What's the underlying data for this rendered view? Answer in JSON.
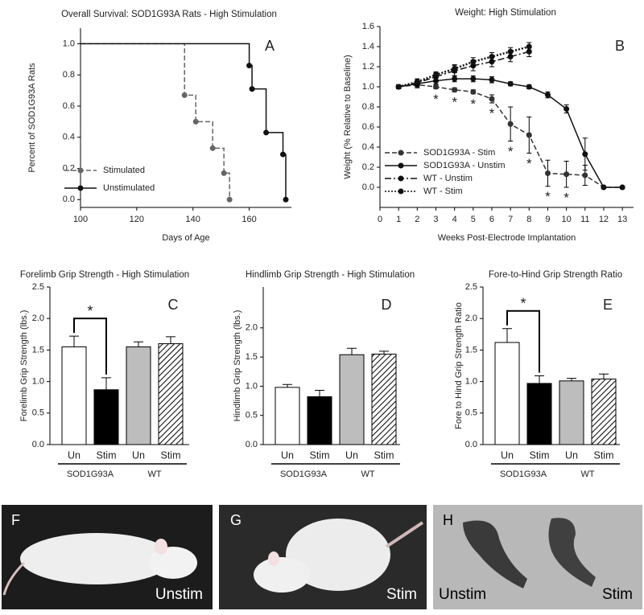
{
  "chart_data": [
    {
      "type": "step",
      "panel": "A",
      "title": "Overall Survival: SOD1G93A Rats - High Stimulation",
      "x_label": "Days of Age",
      "y_label": "Percent of SOD1G93A Rats",
      "xlim": [
        100,
        175
      ],
      "xticks": [
        100,
        120,
        140,
        160
      ],
      "ylim": [
        -0.05,
        1.1
      ],
      "yticks": [
        {
          "value": 0,
          "label": "0.0"
        },
        0.2,
        0.4,
        0.6,
        0.8,
        {
          "value": 1,
          "label": "1.0"
        }
      ],
      "legend": "lower left",
      "series": [
        {
          "name": "Stimulated",
          "color": "#666666",
          "dash": "dashed",
          "x": [
            100,
            137,
            141,
            147,
            151,
            153
          ],
          "values": [
            1.0,
            0.67,
            0.5,
            0.33,
            0.17,
            0.0
          ]
        },
        {
          "name": "Unstimulated",
          "color": "#111111",
          "dash": "solid",
          "x": [
            100,
            160,
            161,
            166,
            172,
            173
          ],
          "values": [
            1.0,
            0.86,
            0.71,
            0.43,
            0.29,
            0.0
          ]
        }
      ]
    },
    {
      "type": "line",
      "panel": "B",
      "title": "Weight: High Stimulation",
      "x_label": "Weeks Post-Electrode Implantation",
      "y_label": "Weight (% Relative to Baseline)",
      "xlim": [
        0,
        13.6
      ],
      "xticks": [
        0,
        1,
        2,
        3,
        4,
        5,
        6,
        7,
        8,
        9,
        10,
        11,
        12,
        13
      ],
      "ylim": [
        -0.2,
        1.6
      ],
      "yticks": [
        {
          "value": 0,
          "label": "0.0"
        },
        0.2,
        0.4,
        0.6,
        0.8,
        {
          "value": 1,
          "label": "1.0"
        },
        1.2,
        1.4,
        1.6
      ],
      "legend": "lower left",
      "significance_marker": "*",
      "significant_x": [
        3,
        4,
        5,
        6,
        7,
        8,
        9,
        10
      ],
      "series": [
        {
          "name": "SOD1G93A - Stim",
          "color": "#333333",
          "dash": "dashed",
          "x": [
            1,
            2,
            3,
            4,
            5,
            6,
            7,
            8,
            9,
            10,
            11,
            12,
            13
          ],
          "values": [
            1.0,
            1.02,
            1.0,
            0.97,
            0.95,
            0.88,
            0.63,
            0.52,
            0.14,
            0.13,
            0.12,
            0.0,
            0.0
          ],
          "errors": [
            0.02,
            0.03,
            0.02,
            0.02,
            0.02,
            0.04,
            0.17,
            0.18,
            0.13,
            0.13,
            0.1,
            0,
            0
          ]
        },
        {
          "name": "SOD1G93A - Unstim",
          "color": "#111111",
          "dash": "solid",
          "x": [
            1,
            2,
            3,
            4,
            5,
            6,
            7,
            8,
            9,
            10,
            11,
            12,
            13
          ],
          "values": [
            1.0,
            1.03,
            1.06,
            1.08,
            1.08,
            1.07,
            1.03,
            1.0,
            0.92,
            0.78,
            0.33,
            0.0,
            0.0
          ],
          "errors": [
            0.02,
            0.03,
            0.03,
            0.03,
            0.03,
            0.03,
            0.02,
            0.02,
            0.03,
            0.04,
            0.16,
            0,
            0
          ]
        },
        {
          "name": "WT - Unstim",
          "color": "#111111",
          "dash": "dashdot",
          "x": [
            1,
            2,
            3,
            4,
            5,
            6,
            7,
            8
          ],
          "values": [
            1.0,
            1.04,
            1.1,
            1.16,
            1.21,
            1.25,
            1.3,
            1.35
          ],
          "errors": [
            0.02,
            0.03,
            0.04,
            0.05,
            0.05,
            0.05,
            0.05,
            0.05
          ]
        },
        {
          "name": "WT - Stim",
          "color": "#111111",
          "dash": "dotted",
          "x": [
            1,
            2,
            3,
            4,
            5,
            6,
            7,
            8
          ],
          "values": [
            1.0,
            1.05,
            1.12,
            1.18,
            1.25,
            1.3,
            1.35,
            1.4
          ],
          "errors": [
            0.02,
            0.03,
            0.03,
            0.04,
            0.04,
            0.04,
            0.04,
            0.04
          ]
        }
      ]
    },
    {
      "type": "bar",
      "panel": "C",
      "title": "Forelimb Grip Strength - High Stimulation",
      "y_label": "Forelimb Grip Strength (lbs.)",
      "categories": [
        "Un",
        "Stim",
        "Un",
        "Stim"
      ],
      "groups": [
        "SOD1G93A",
        "WT"
      ],
      "values": [
        1.55,
        0.87,
        1.55,
        1.6
      ],
      "errors": [
        0.17,
        0.19,
        0.08,
        0.11
      ],
      "colors": [
        "#ffffff",
        "#000000",
        "#bdbdbd",
        "#ffffff"
      ],
      "hatch": [
        false,
        false,
        false,
        true
      ],
      "ylim": [
        0,
        2.5
      ],
      "yticks": [
        {
          "value": 0,
          "label": "0.0"
        },
        0.5,
        {
          "value": 1,
          "label": "1.0"
        },
        1.5,
        {
          "value": 2,
          "label": "2.0"
        },
        2.5
      ],
      "significance": {
        "between": [
          0,
          1
        ],
        "label": "*"
      }
    },
    {
      "type": "bar",
      "panel": "D",
      "title": "Hindlimb Grip Strength - High Stimulation",
      "y_label": "Hindlimb Grip Strength (lbs.)",
      "categories": [
        "Un",
        "Stim",
        "Un",
        "Stim"
      ],
      "groups": [
        "SOD1G93A",
        "WT"
      ],
      "values": [
        0.98,
        0.82,
        1.54,
        1.55
      ],
      "errors": [
        0.05,
        0.11,
        0.11,
        0.05
      ],
      "colors": [
        "#ffffff",
        "#000000",
        "#bdbdbd",
        "#ffffff"
      ],
      "hatch": [
        false,
        false,
        false,
        true
      ],
      "ylim": [
        0,
        2.7
      ],
      "yticks": [
        {
          "value": 0,
          "label": "0.0"
        },
        0.5,
        {
          "value": 1,
          "label": "1.0"
        },
        1.5,
        {
          "value": 2,
          "label": "2.0"
        }
      ]
    },
    {
      "type": "bar",
      "panel": "E",
      "title": "Fore-to-Hind Grip Strength Ratio",
      "y_label": "Fore to Hind Grip Strength Ratio",
      "categories": [
        "Un",
        "Stim",
        "Un",
        "Stim"
      ],
      "groups": [
        "SOD1G93A",
        "WT"
      ],
      "values": [
        1.62,
        0.97,
        1.01,
        1.04
      ],
      "errors": [
        0.22,
        0.12,
        0.04,
        0.08
      ],
      "colors": [
        "#ffffff",
        "#000000",
        "#bdbdbd",
        "#ffffff"
      ],
      "hatch": [
        false,
        false,
        false,
        true
      ],
      "ylim": [
        0,
        2.5
      ],
      "yticks": [
        {
          "value": 0,
          "label": "0.0"
        },
        0.5,
        {
          "value": 1,
          "label": "1.0"
        },
        1.5,
        {
          "value": 2,
          "label": "2.0"
        },
        2.5
      ],
      "significance": {
        "between": [
          0,
          1
        ],
        "label": "*"
      }
    }
  ],
  "photos": [
    {
      "label": "F",
      "captions": [
        "Unstim"
      ]
    },
    {
      "label": "G",
      "captions": [
        "Stim"
      ]
    },
    {
      "label": "H",
      "captions": [
        "Unstim",
        "Stim"
      ]
    }
  ]
}
